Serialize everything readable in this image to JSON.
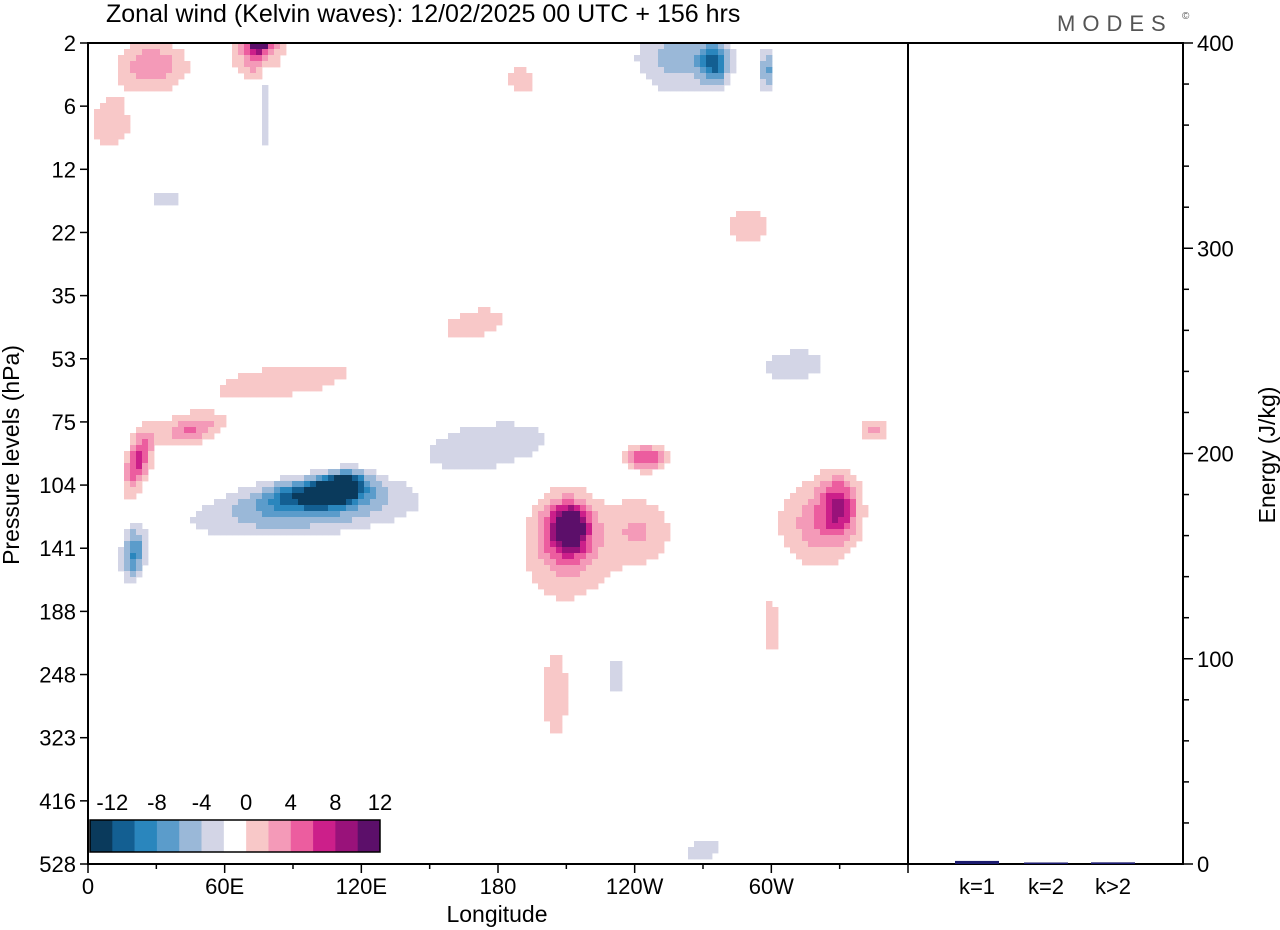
{
  "chart_data": [
    {
      "type": "heatmap",
      "title": "Zonal wind (Kelvin waves):  12/02/2025  00 UTC  + 156 hrs",
      "brand": "MODES",
      "brand_mark": "©",
      "xlabel": "Longitude",
      "ylabel": "Pressure levels (hPa)",
      "x_ticks": [
        "0",
        "60E",
        "120E",
        "180",
        "120W",
        "60W"
      ],
      "x_tick_values": [
        0,
        60,
        120,
        180,
        240,
        300
      ],
      "xlim": [
        0,
        360
      ],
      "y_ticks": [
        "2",
        "6",
        "12",
        "22",
        "35",
        "53",
        "75",
        "104",
        "141",
        "188",
        "248",
        "323",
        "416",
        "528"
      ],
      "colorbar": {
        "labels": [
          "-12",
          "-8",
          "-4",
          "0",
          "4",
          "8",
          "12"
        ],
        "levels": [
          -14,
          -12,
          -10,
          -8,
          -6,
          -4,
          -2,
          2,
          4,
          6,
          8,
          10,
          12,
          14
        ],
        "colors": [
          "#0a3a5c",
          "#135f92",
          "#2a86bd",
          "#5b9ccb",
          "#9ab8d8",
          "#d3d5e6",
          "#ffffff",
          "#f8c8c8",
          "#f49ab8",
          "#ec5d9f",
          "#cc1f8a",
          "#99127a",
          "#5c0f6a"
        ]
      },
      "blobs": [
        {
          "lon": 28,
          "lev": 3.0,
          "w": 30,
          "h": 1.6,
          "v": 6,
          "rot": 0
        },
        {
          "lon": 10,
          "lev": 7.2,
          "w": 18,
          "h": 2.6,
          "v": 4,
          "rot": 0
        },
        {
          "lon": 75,
          "lev": 1.9,
          "w": 20,
          "h": 1.6,
          "v": 8,
          "rot": 0.2
        },
        {
          "lon": 75,
          "lev": 1.4,
          "w": 7,
          "h": 0.9,
          "v": 14,
          "rot": 0
        },
        {
          "lon": 78,
          "lev": 6.0,
          "w": 5,
          "h": 4.0,
          "v": -4,
          "rot": 0
        },
        {
          "lon": 65,
          "lev": 9.0,
          "w": 7,
          "h": 4.5,
          "v": -2,
          "rot": 0
        },
        {
          "lon": 190,
          "lev": 3.8,
          "w": 18,
          "h": 1.5,
          "v": 3,
          "rot": 0
        },
        {
          "lon": 260,
          "lev": 2.6,
          "w": 40,
          "h": 2.2,
          "v": -5,
          "rot": 0
        },
        {
          "lon": 275,
          "lev": 2.8,
          "w": 12,
          "h": 1.2,
          "v": -9,
          "rot": 0
        },
        {
          "lon": 298,
          "lev": 3.2,
          "w": 6,
          "h": 1.2,
          "v": -7,
          "rot": 0
        },
        {
          "lon": 200,
          "lev": 11.0,
          "w": 10,
          "h": 5.5,
          "v": -2,
          "rot": 0
        },
        {
          "lon": 35,
          "lev": 16.0,
          "w": 18,
          "h": 1.6,
          "v": -3,
          "rot": 0
        },
        {
          "lon": 28,
          "lev": 24.0,
          "w": 12,
          "h": 1.6,
          "v": -2,
          "rot": 0
        },
        {
          "lon": 290,
          "lev": 20.5,
          "w": 26,
          "h": 4.8,
          "v": 3,
          "rot": 0
        },
        {
          "lon": 85,
          "lev": 60.0,
          "w": 88,
          "h": 8.0,
          "v": 3,
          "rot": 0.55
        },
        {
          "lon": 170,
          "lev": 42.0,
          "w": 40,
          "h": 6.0,
          "v": 3,
          "rot": 0.35
        },
        {
          "lon": 45,
          "lev": 78.0,
          "w": 28,
          "h": 6.0,
          "v": 6,
          "rot": 0.3
        },
        {
          "lon": 22,
          "lev": 92.0,
          "w": 12,
          "h": 13.0,
          "v": 9,
          "rot": 0.6
        },
        {
          "lon": 175,
          "lev": 85.0,
          "w": 60,
          "h": 12.0,
          "v": -4,
          "rot": 0.35
        },
        {
          "lon": 95,
          "lev": 118.0,
          "w": 95,
          "h": 14.0,
          "v": -6,
          "rot": 0.35
        },
        {
          "lon": 100,
          "lev": 108.0,
          "w": 45,
          "h": 8.0,
          "v": -10,
          "rot": 0.25
        },
        {
          "lon": 110,
          "lev": 105.0,
          "w": 20,
          "h": 7.0,
          "v": -14,
          "rot": 0.3
        },
        {
          "lon": 20,
          "lev": 145.0,
          "w": 10,
          "h": 18.0,
          "v": -8,
          "rot": 0.2
        },
        {
          "lon": 35,
          "lev": 215.0,
          "w": 25,
          "h": 45.0,
          "v": -2,
          "rot": 0.15
        },
        {
          "lon": 160,
          "lev": 150.0,
          "w": 10,
          "h": 28.0,
          "v": -2,
          "rot": 0
        },
        {
          "lon": 310,
          "lev": 55.0,
          "w": 40,
          "h": 7.0,
          "v": -3,
          "rot": 0.25
        },
        {
          "lon": 300,
          "lev": 80.0,
          "w": 30,
          "h": 6.0,
          "v": -2,
          "rot": 0.2
        },
        {
          "lon": 210,
          "lev": 145.0,
          "w": 40,
          "h": 40.0,
          "v": 4,
          "rot": 0
        },
        {
          "lon": 210,
          "lev": 128.0,
          "w": 22,
          "h": 20.0,
          "v": 8,
          "rot": 0
        },
        {
          "lon": 212,
          "lev": 128.0,
          "w": 12,
          "h": 12.0,
          "v": 11,
          "rot": 0
        },
        {
          "lon": 242,
          "lev": 130.0,
          "w": 30,
          "h": 24.0,
          "v": 4,
          "rot": 0
        },
        {
          "lon": 245,
          "lev": 90.0,
          "w": 18,
          "h": 6.0,
          "v": 8,
          "rot": 0
        },
        {
          "lon": 205,
          "lev": 270.0,
          "w": 12,
          "h": 60.0,
          "v": 4,
          "rot": 0
        },
        {
          "lon": 232,
          "lev": 250.0,
          "w": 8,
          "h": 28.0,
          "v": -3,
          "rot": 0
        },
        {
          "lon": 320,
          "lev": 125.0,
          "w": 34,
          "h": 28.0,
          "v": 5,
          "rot": 0
        },
        {
          "lon": 330,
          "lev": 115.0,
          "w": 16,
          "h": 18.0,
          "v": 8,
          "rot": 0
        },
        {
          "lon": 345,
          "lev": 78.0,
          "w": 12,
          "h": 5.0,
          "v": 5,
          "rot": 0
        },
        {
          "lon": 300,
          "lev": 200.0,
          "w": 8,
          "h": 40.0,
          "v": 3,
          "rot": 0
        },
        {
          "lon": 270,
          "lev": 500.0,
          "w": 22,
          "h": 60.0,
          "v": -3,
          "rot": 0.2
        }
      ]
    },
    {
      "type": "bar",
      "ylabel": "Energy (J/kg)",
      "categories": [
        "k=1",
        "k=2",
        "k>2"
      ],
      "values": [
        1.5,
        0.3,
        0.8
      ],
      "ylim": [
        0,
        400
      ],
      "y_ticks": [
        "0",
        "100",
        "200",
        "300",
        "400"
      ],
      "y_tick_values": [
        0,
        100,
        200,
        300,
        400
      ],
      "bar_color": "#1a1a6e"
    }
  ]
}
